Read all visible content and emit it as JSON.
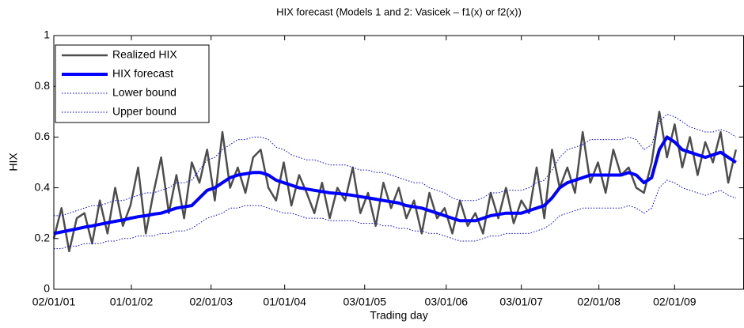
{
  "chart_data": {
    "type": "line",
    "title": "HIX forecast (Models 1 and 2: Vasicek – f1(x) or f2(x))",
    "xlabel": "Trading day",
    "ylabel": "HIX",
    "legend": "upper left",
    "xlim": [
      0,
      2250
    ],
    "ylim": [
      0,
      1
    ],
    "xticks": [
      {
        "value": 0,
        "label": "02/01/01"
      },
      {
        "value": 253,
        "label": "01/01/02"
      },
      {
        "value": 513,
        "label": "02/01/03"
      },
      {
        "value": 753,
        "label": "01/01/04"
      },
      {
        "value": 1014,
        "label": "03/01/05"
      },
      {
        "value": 1280,
        "label": "03/01/06"
      },
      {
        "value": 1525,
        "label": "03/01/07"
      },
      {
        "value": 1778,
        "label": "02/01/08"
      },
      {
        "value": 2025,
        "label": "02/01/09"
      }
    ],
    "yticks": [
      0,
      0.2,
      0.4,
      0.6,
      0.8,
      1
    ],
    "x": [
      0,
      25,
      50,
      75,
      100,
      125,
      150,
      175,
      200,
      225,
      250,
      275,
      300,
      325,
      350,
      375,
      400,
      425,
      450,
      475,
      500,
      525,
      550,
      575,
      600,
      625,
      650,
      675,
      700,
      725,
      750,
      775,
      800,
      825,
      850,
      875,
      900,
      925,
      950,
      975,
      1000,
      1025,
      1050,
      1075,
      1100,
      1125,
      1150,
      1175,
      1200,
      1225,
      1250,
      1275,
      1300,
      1325,
      1350,
      1375,
      1400,
      1425,
      1450,
      1475,
      1500,
      1525,
      1550,
      1575,
      1600,
      1625,
      1650,
      1675,
      1700,
      1725,
      1750,
      1775,
      1800,
      1825,
      1850,
      1875,
      1900,
      1925,
      1950,
      1975,
      2000,
      2025,
      2050,
      2075,
      2100,
      2125,
      2150,
      2175,
      2200,
      2225
    ],
    "series": [
      {
        "name": "Realized HIX",
        "color": "#4d4d4d",
        "style": "solid",
        "values": [
          0.2,
          0.32,
          0.15,
          0.28,
          0.3,
          0.18,
          0.35,
          0.22,
          0.4,
          0.25,
          0.33,
          0.48,
          0.22,
          0.38,
          0.52,
          0.3,
          0.45,
          0.28,
          0.5,
          0.42,
          0.55,
          0.35,
          0.62,
          0.4,
          0.48,
          0.38,
          0.52,
          0.55,
          0.4,
          0.35,
          0.5,
          0.33,
          0.45,
          0.38,
          0.3,
          0.42,
          0.28,
          0.4,
          0.35,
          0.48,
          0.3,
          0.38,
          0.25,
          0.42,
          0.32,
          0.4,
          0.28,
          0.35,
          0.22,
          0.38,
          0.28,
          0.32,
          0.22,
          0.35,
          0.25,
          0.3,
          0.22,
          0.38,
          0.28,
          0.4,
          0.26,
          0.35,
          0.3,
          0.48,
          0.28,
          0.55,
          0.4,
          0.48,
          0.38,
          0.62,
          0.42,
          0.5,
          0.38,
          0.55,
          0.45,
          0.48,
          0.4,
          0.38,
          0.5,
          0.7,
          0.52,
          0.65,
          0.48,
          0.6,
          0.45,
          0.58,
          0.5,
          0.62,
          0.42,
          0.55
        ]
      },
      {
        "name": "HIX forecast",
        "color": "#0000ff",
        "style": "thick",
        "values": [
          0.22,
          0.226,
          0.232,
          0.238,
          0.245,
          0.25,
          0.256,
          0.262,
          0.268,
          0.273,
          0.28,
          0.286,
          0.29,
          0.296,
          0.3,
          0.31,
          0.32,
          0.325,
          0.33,
          0.36,
          0.39,
          0.4,
          0.42,
          0.44,
          0.45,
          0.455,
          0.46,
          0.46,
          0.45,
          0.43,
          0.42,
          0.41,
          0.4,
          0.395,
          0.39,
          0.385,
          0.38,
          0.378,
          0.374,
          0.37,
          0.365,
          0.36,
          0.355,
          0.35,
          0.345,
          0.34,
          0.33,
          0.325,
          0.32,
          0.31,
          0.3,
          0.29,
          0.28,
          0.27,
          0.27,
          0.27,
          0.28,
          0.29,
          0.295,
          0.3,
          0.3,
          0.3,
          0.31,
          0.32,
          0.33,
          0.36,
          0.4,
          0.42,
          0.43,
          0.44,
          0.45,
          0.45,
          0.45,
          0.45,
          0.45,
          0.46,
          0.45,
          0.42,
          0.44,
          0.55,
          0.6,
          0.58,
          0.55,
          0.54,
          0.53,
          0.52,
          0.53,
          0.54,
          0.52,
          0.5
        ]
      },
      {
        "name": "Lower bound",
        "color": "#0000ff",
        "style": "dotted",
        "values": [
          0.16,
          0.16,
          0.17,
          0.17,
          0.18,
          0.18,
          0.18,
          0.19,
          0.19,
          0.2,
          0.2,
          0.21,
          0.21,
          0.21,
          0.22,
          0.22,
          0.23,
          0.23,
          0.24,
          0.26,
          0.28,
          0.29,
          0.3,
          0.32,
          0.32,
          0.33,
          0.33,
          0.33,
          0.32,
          0.31,
          0.3,
          0.3,
          0.29,
          0.28,
          0.28,
          0.28,
          0.27,
          0.27,
          0.27,
          0.27,
          0.26,
          0.26,
          0.26,
          0.25,
          0.25,
          0.24,
          0.24,
          0.23,
          0.23,
          0.22,
          0.22,
          0.21,
          0.2,
          0.19,
          0.19,
          0.19,
          0.2,
          0.21,
          0.21,
          0.22,
          0.22,
          0.22,
          0.22,
          0.23,
          0.24,
          0.26,
          0.29,
          0.3,
          0.31,
          0.32,
          0.32,
          0.32,
          0.32,
          0.32,
          0.32,
          0.33,
          0.32,
          0.3,
          0.32,
          0.4,
          0.43,
          0.42,
          0.4,
          0.39,
          0.38,
          0.37,
          0.38,
          0.39,
          0.37,
          0.36
        ]
      },
      {
        "name": "Upper bound",
        "color": "#0000ff",
        "style": "dotted",
        "values": [
          0.29,
          0.29,
          0.3,
          0.31,
          0.32,
          0.33,
          0.33,
          0.34,
          0.35,
          0.35,
          0.36,
          0.37,
          0.38,
          0.38,
          0.39,
          0.4,
          0.42,
          0.42,
          0.43,
          0.47,
          0.51,
          0.52,
          0.55,
          0.57,
          0.59,
          0.59,
          0.6,
          0.6,
          0.59,
          0.56,
          0.55,
          0.53,
          0.52,
          0.51,
          0.51,
          0.5,
          0.49,
          0.49,
          0.49,
          0.48,
          0.47,
          0.47,
          0.46,
          0.46,
          0.45,
          0.44,
          0.43,
          0.42,
          0.42,
          0.4,
          0.39,
          0.38,
          0.36,
          0.35,
          0.35,
          0.35,
          0.36,
          0.38,
          0.38,
          0.39,
          0.39,
          0.39,
          0.4,
          0.42,
          0.43,
          0.47,
          0.52,
          0.55,
          0.56,
          0.57,
          0.59,
          0.59,
          0.59,
          0.59,
          0.59,
          0.6,
          0.59,
          0.55,
          0.57,
          0.66,
          0.69,
          0.68,
          0.66,
          0.64,
          0.63,
          0.62,
          0.62,
          0.63,
          0.62,
          0.6
        ]
      }
    ]
  }
}
